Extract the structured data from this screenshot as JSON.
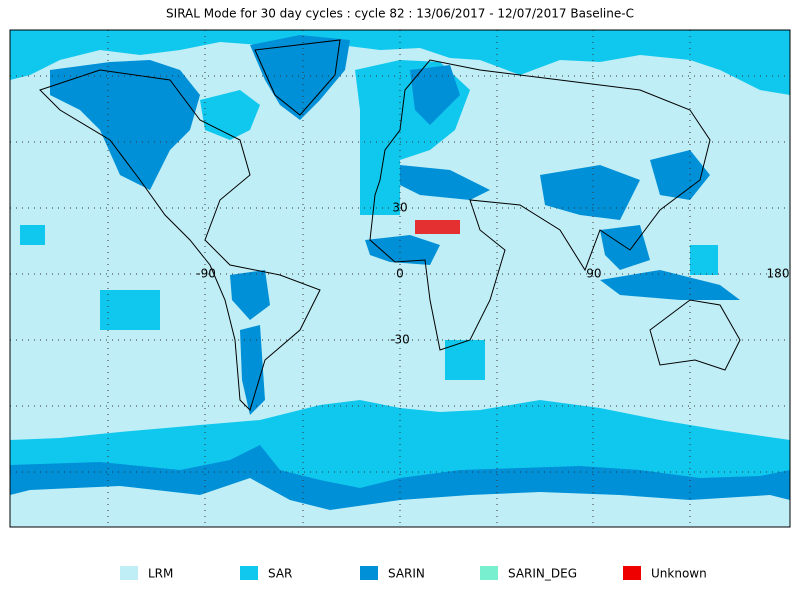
{
  "title": "SIRAL Mode for 30 day cycles : cycle 82 : 13/06/2017 - 12/07/2017 Baseline-C",
  "map": {
    "lon_labels": [
      -90,
      0,
      90,
      180
    ],
    "lat_labels": [
      30,
      -30
    ]
  },
  "legend": [
    {
      "label": "LRM",
      "color": "#c0eef6"
    },
    {
      "label": "SAR",
      "color": "#10c8ee"
    },
    {
      "label": "SARIN",
      "color": "#0090d8"
    },
    {
      "label": "SARIN_DEG",
      "color": "#78f0d0"
    },
    {
      "label": "Unknown",
      "color": "#ee0000"
    }
  ]
}
